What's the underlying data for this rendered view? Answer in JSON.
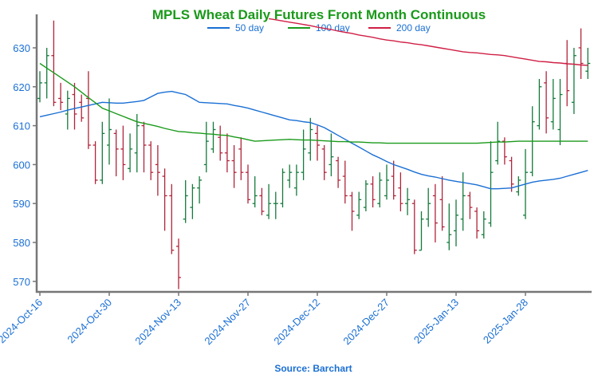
{
  "chart_data": {
    "type": "ohlc",
    "title": "MPLS Wheat Daily Futures Front Month Continuous",
    "source": "Source: Barchart",
    "categories": [
      "2024-Oct-16",
      null,
      null,
      null,
      null,
      null,
      null,
      null,
      null,
      null,
      "2024-Oct-30",
      null,
      null,
      null,
      null,
      null,
      null,
      null,
      null,
      null,
      "2024-Nov-13",
      null,
      null,
      null,
      null,
      null,
      null,
      null,
      null,
      null,
      "2024-Nov-27",
      null,
      null,
      null,
      null,
      null,
      null,
      null,
      null,
      null,
      "2024-Dec-12",
      null,
      null,
      null,
      null,
      null,
      null,
      null,
      null,
      null,
      "2024-Dec-27",
      null,
      null,
      null,
      null,
      null,
      null,
      null,
      null,
      null,
      "2025-Jan-13",
      null,
      null,
      null,
      null,
      null,
      null,
      null,
      null,
      null,
      "2025-Jan-28",
      null,
      null,
      null,
      null,
      null,
      null,
      null,
      null,
      null
    ],
    "ohlc": {
      "up_color": "#157a3c",
      "down_color": "#b0243a",
      "open": [
        617,
        621,
        628,
        617,
        613,
        618,
        616,
        617,
        605,
        596,
        605,
        608,
        604,
        599,
        603,
        610,
        605,
        600,
        597,
        592,
        579,
        586,
        589,
        594,
        600,
        604,
        607,
        603,
        601,
        604,
        598,
        590,
        592,
        587,
        590,
        590,
        596,
        594,
        598,
        603,
        608,
        604,
        600,
        601,
        597,
        592,
        587,
        589,
        595,
        590,
        592,
        597,
        594,
        590,
        590,
        578,
        586,
        592,
        591,
        580,
        583,
        586,
        592,
        588,
        582,
        585,
        601,
        606,
        601,
        593,
        587,
        598,
        610,
        621,
        611,
        609,
        626,
        616,
        630,
        624
      ],
      "high": [
        624,
        630,
        637,
        621,
        619,
        621,
        618,
        624,
        606,
        611,
        617,
        609,
        610,
        608,
        613,
        611,
        606,
        605,
        599,
        595,
        581,
        596,
        595,
        597,
        611,
        611,
        610,
        608,
        605,
        607,
        600,
        597,
        594,
        595,
        593,
        599,
        600,
        600,
        609,
        612,
        610,
        605,
        608,
        602,
        601,
        593,
        593,
        596,
        597,
        598,
        600,
        601,
        598,
        594,
        591,
        588,
        594,
        595,
        597,
        590,
        591,
        598,
        593,
        589,
        588,
        606,
        611,
        607,
        602,
        597,
        604,
        615,
        622,
        624,
        622,
        622,
        632,
        630,
        635,
        630
      ],
      "low": [
        616,
        617,
        615,
        614,
        609,
        609,
        611,
        604,
        595,
        595,
        600,
        597,
        596,
        598,
        598,
        598,
        596,
        592,
        583,
        577,
        568,
        585,
        586,
        590,
        598,
        603,
        601,
        598,
        594,
        596,
        590,
        589,
        587,
        586,
        586,
        589,
        594,
        592,
        596,
        601,
        601,
        596,
        597,
        594,
        590,
        583,
        586,
        588,
        589,
        589,
        591,
        591,
        588,
        587,
        577,
        578,
        584,
        580,
        583,
        578,
        579,
        583,
        586,
        581,
        581,
        584,
        600,
        600,
        593,
        592,
        586,
        597,
        609,
        608,
        609,
        605,
        615,
        613,
        622,
        622
      ],
      "close": [
        621,
        628,
        616,
        616,
        617,
        613,
        612,
        605,
        596,
        608,
        609,
        604,
        600,
        604,
        610,
        605,
        598,
        598,
        592,
        578,
        571,
        592,
        594,
        596,
        606,
        609,
        603,
        601,
        598,
        598,
        591,
        592,
        588,
        590,
        590,
        598,
        598,
        598,
        604,
        609,
        605,
        598,
        602,
        596,
        592,
        588,
        591,
        595,
        591,
        596,
        596,
        592,
        590,
        591,
        578,
        586,
        590,
        585,
        584,
        582,
        587,
        592,
        589,
        583,
        586,
        598,
        606,
        602,
        595,
        596,
        598,
        611,
        620,
        612,
        617,
        618,
        619,
        628,
        626,
        626
      ]
    },
    "series": [
      {
        "name": "50 day",
        "color": "#1a6fd4",
        "values": [
          612.3,
          612.7,
          613.1,
          613.5,
          614,
          614.4,
          614.8,
          615.2,
          615.6,
          616,
          615.9,
          615.8,
          615.8,
          616,
          616.2,
          616.5,
          617.4,
          618.3,
          618.6,
          618.8,
          618.4,
          618,
          617,
          616,
          615.9,
          615.8,
          615.7,
          615.6,
          615.2,
          614.9,
          614.5,
          614,
          613.5,
          613,
          612.5,
          612,
          611.5,
          611.3,
          611,
          610.8,
          610.2,
          609.5,
          608.5,
          607.5,
          606.5,
          605.5,
          604.5,
          603.5,
          602.5,
          601.7,
          600.8,
          600,
          599.4,
          598.8,
          598.1,
          597.5,
          597.1,
          596.8,
          596.4,
          596,
          595.7,
          595.4,
          595.1,
          594.8,
          594.3,
          593.8,
          593.8,
          593.9,
          594,
          594.5,
          595,
          595.5,
          595.8,
          596,
          596.2,
          596.5,
          597,
          597.5,
          598,
          598.5
        ]
      },
      {
        "name": "100 day",
        "color": "#1a9a1a",
        "values": [
          626,
          624.8,
          623.6,
          622.4,
          621.2,
          620,
          618.6,
          617.2,
          615.9,
          614.5,
          613.8,
          613.1,
          612.4,
          611.7,
          611,
          610.6,
          610.2,
          609.8,
          609.3,
          608.9,
          608.5,
          608.4,
          608.2,
          608.1,
          607.9,
          607.8,
          607.6,
          607.5,
          607.1,
          606.8,
          606.4,
          606,
          606.1,
          606.2,
          606.3,
          606.4,
          606.5,
          606.4,
          606.3,
          606.3,
          606.2,
          606.1,
          606,
          605.9,
          605.9,
          605.8,
          605.8,
          605.7,
          605.6,
          605.6,
          605.5,
          605.5,
          605.5,
          605.5,
          605.5,
          605.5,
          605.5,
          605.5,
          605.5,
          605.5,
          605.5,
          605.5,
          605.5,
          605.5,
          605.6,
          605.7,
          605.8,
          605.8,
          605.9,
          606,
          606,
          606,
          606,
          606,
          606,
          606,
          606,
          606,
          606,
          606
        ]
      },
      {
        "name": "200 day",
        "color": "#d01f45",
        "values": [
          null,
          null,
          null,
          null,
          null,
          null,
          null,
          null,
          null,
          null,
          null,
          null,
          null,
          null,
          null,
          null,
          null,
          null,
          null,
          null,
          null,
          null,
          null,
          null,
          null,
          null,
          null,
          null,
          null,
          null,
          null,
          null,
          null,
          637.5,
          637.2,
          636.9,
          636.6,
          636.3,
          636,
          635.7,
          635.3,
          635,
          634.7,
          634.3,
          634,
          633.7,
          633.3,
          633,
          632.7,
          632.3,
          632,
          631.8,
          631.5,
          631.3,
          631,
          630.8,
          630.5,
          630.2,
          629.9,
          629.6,
          629.3,
          629,
          628.8,
          628.7,
          628.5,
          628.3,
          628.2,
          628,
          627.7,
          627.4,
          627.1,
          626.8,
          626.5,
          626.4,
          626.2,
          626.1,
          625.9,
          625.8,
          625.6,
          625.5
        ]
      }
    ],
    "ylim": [
      567.3,
      638.6
    ],
    "yticks": [
      570,
      580,
      590,
      600,
      610,
      620,
      630
    ],
    "grid": false
  }
}
